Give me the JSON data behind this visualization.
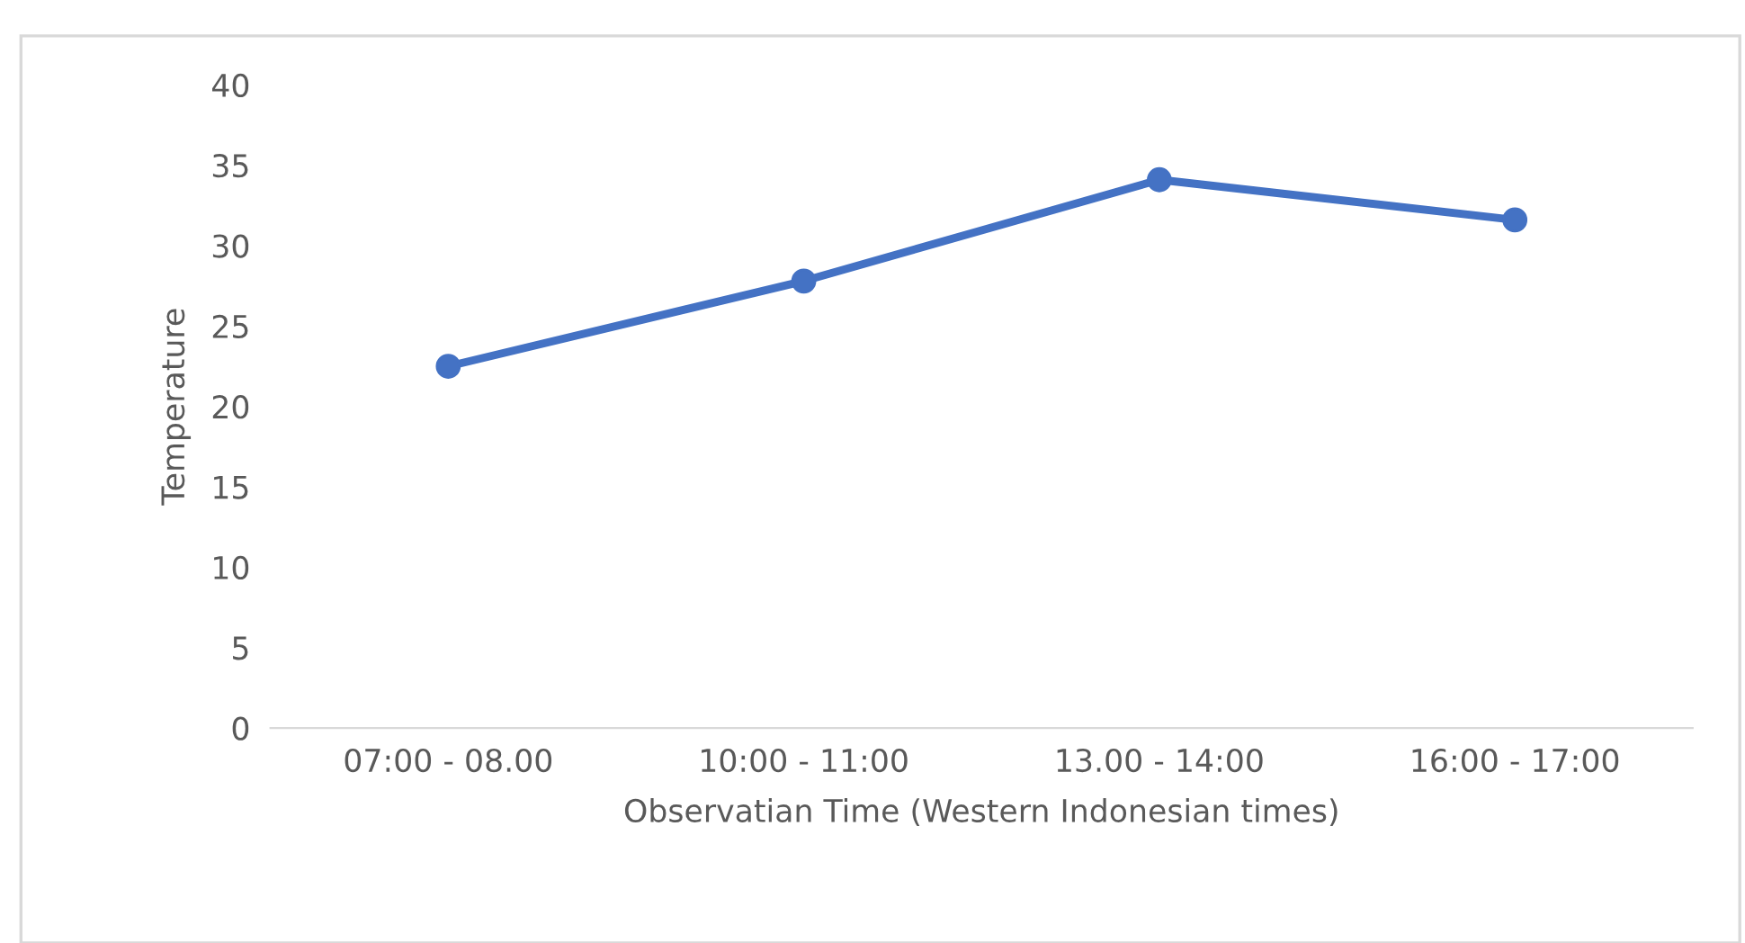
{
  "chart_data": {
    "type": "line",
    "xlabel": "Observatian Time (Western Indonesian times)",
    "ylabel": "Temperature",
    "categories": [
      "07:00 - 08.00",
      "10:00 - 11:00",
      "13.00 - 14:00",
      "16:00 - 17:00"
    ],
    "series": [
      {
        "color": "#4472c4",
        "values": [
          22.5,
          27.8,
          34.1,
          31.6
        ]
      }
    ],
    "ylim": [
      0,
      40
    ],
    "yticks": [
      0,
      5,
      10,
      15,
      20,
      25,
      30,
      35,
      40
    ],
    "grid": false,
    "marker": "circle",
    "line_style": "solid",
    "legend": false
  }
}
